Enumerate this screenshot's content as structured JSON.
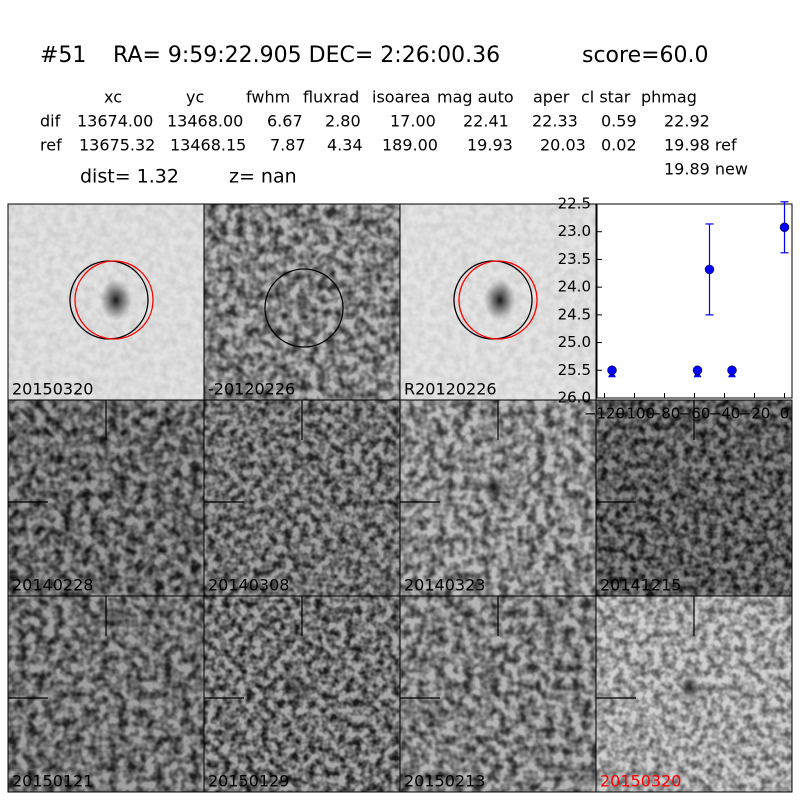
{
  "header": {
    "id": "#51",
    "coords": "RA= 9:59:22.905 DEC= 2:26:00.36",
    "score": "score=60.0"
  },
  "table": {
    "columns": [
      "xc",
      "yc",
      "fwhm",
      "fluxrad",
      "isoarea",
      "mag auto",
      "aper",
      "cl star",
      "phmag"
    ],
    "rows": [
      [
        "dif",
        "13674.00",
        "13468.00",
        "6.67",
        "2.80",
        "17.00",
        "22.41",
        "22.33",
        "0.59",
        "22.92"
      ],
      [
        "ref",
        "13675.32",
        "13468.15",
        "7.87",
        "4.34",
        "189.00",
        "19.93",
        "20.03",
        "0.02",
        "19.98 ref"
      ]
    ],
    "extra": "19.89 new"
  },
  "dist": "dist=  1.32",
  "z": "z=   nan",
  "stamps": [
    {
      "label": "20150320"
    },
    {
      "label": "-20120226"
    },
    {
      "label": "R20120226"
    },
    {
      "label": "20140228"
    },
    {
      "label": "20140308"
    },
    {
      "label": "20140323"
    },
    {
      "label": "20141215"
    },
    {
      "label": "20150121"
    },
    {
      "label": "20150129"
    },
    {
      "label": "20150213"
    },
    {
      "label": "20150320",
      "color": "#ff0000"
    }
  ],
  "chart_data": {
    "type": "scatter",
    "x": [
      -115,
      -58,
      -50,
      -35,
      0
    ],
    "series": [
      {
        "color": "#0000ff",
        "values": [
          25.5,
          25.5,
          23.68,
          25.5,
          22.92
        ],
        "errors": [
          null,
          null,
          0.82,
          null,
          0.46
        ],
        "upper_limit": [
          true,
          true,
          false,
          true,
          false
        ]
      }
    ],
    "xlim": [
      -125,
      5
    ],
    "ylim": [
      26.0,
      22.5
    ],
    "xticks": [
      {
        "value": -120,
        "label": "−120"
      },
      {
        "value": -100,
        "label": "−100"
      },
      {
        "value": -80,
        "label": "−80"
      },
      {
        "value": -60,
        "label": "−60"
      },
      {
        "value": -40,
        "label": "−40"
      },
      {
        "value": -20,
        "label": "−20"
      },
      0
    ],
    "yticks": [
      22.5,
      {
        "value": 23,
        "label": "23.0"
      },
      23.5,
      {
        "value": 24,
        "label": "24.0"
      },
      24.5,
      {
        "value": 25,
        "label": "25.0"
      },
      25.5,
      {
        "value": 26,
        "label": "26.0"
      }
    ]
  }
}
